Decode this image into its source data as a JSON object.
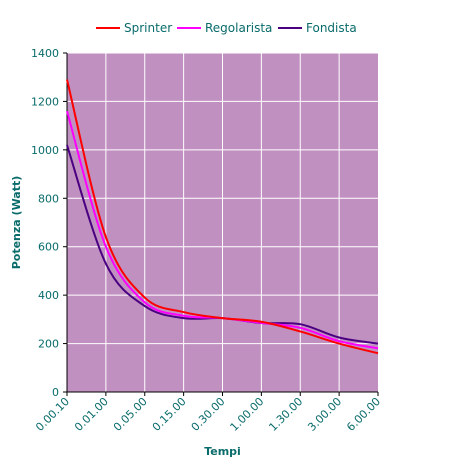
{
  "chart_data": {
    "type": "line",
    "title": "",
    "xlabel": "Tempi",
    "ylabel": "Potenza (Watt)",
    "categories": [
      "0.00.10",
      "0.01.00",
      "0.05.00",
      "0.15.00",
      "0.30.00",
      "1.00.00",
      "1.30.00",
      "3.00.00",
      "6.00.00"
    ],
    "ylim": [
      0,
      1400
    ],
    "yticks": [
      0,
      200,
      400,
      600,
      800,
      1000,
      1200,
      1400
    ],
    "grid": true,
    "legend_position": "top",
    "plot_background": "#c090c0",
    "series": [
      {
        "name": "Sprinter",
        "color": "#ff0000",
        "values": [
          1290,
          640,
          390,
          330,
          305,
          290,
          250,
          200,
          160
        ]
      },
      {
        "name": "Regolarista",
        "color": "#ff00ff",
        "values": [
          1160,
          600,
          370,
          315,
          305,
          285,
          265,
          210,
          180
        ]
      },
      {
        "name": "Fondista",
        "color": "#4b0082",
        "values": [
          1020,
          530,
          355,
          305,
          305,
          285,
          280,
          225,
          200
        ]
      }
    ]
  }
}
